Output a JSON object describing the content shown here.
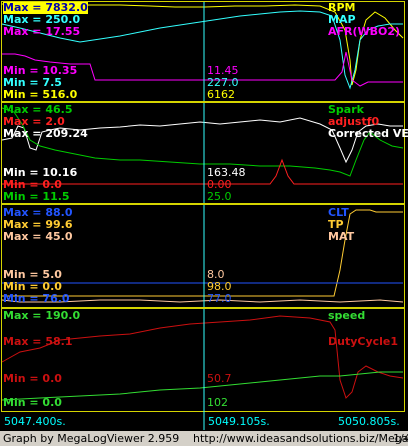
{
  "colors": {
    "yellow": "#ffff00",
    "cyan": "#33ffff",
    "magenta": "#ff00ff",
    "green": "#00cc00",
    "red": "#ff2020",
    "white": "#ffffff",
    "blue": "#2255ff",
    "peach": "#ffc8a0",
    "orange": "#ffcc33",
    "brightgreen": "#33dd33",
    "darkred": "#cc1010"
  },
  "panel1": {
    "max_rpm": "Max = 7832.0",
    "max_map": "Max = 250.0",
    "max_afr": "Max = 17.55",
    "min_afr": "Min = 10.35",
    "min_map": "Min = 7.5",
    "min_rpm": "Min = 516.0",
    "cur_afr": "11.45",
    "cur_map": "227.0",
    "cur_rpm": "6162",
    "name_rpm": "RPM",
    "name_map": "MAP",
    "name_afr": "AFR(WBO2)"
  },
  "panel2": {
    "max_spark": "Max = 46.5",
    "max_adjust": "Max = 2.0",
    "max_ve": "Max = 209.24",
    "min_ve": "Min = 10.16",
    "min_adjust": "Min = 0.0",
    "min_spark": "Min = 11.5",
    "cur_ve": "163.48",
    "cur_adjust": "0.00",
    "cur_spark": "25.0",
    "name_spark": "Spark",
    "name_adjust": "adjustf0",
    "name_ve": "Corrected VE"
  },
  "panel3": {
    "max_clt": "Max = 88.0",
    "max_tp": "Max = 99.6",
    "max_mat": "Max = 45.0",
    "min_mat": "Min = 5.0",
    "min_tp": "Min = 0.0",
    "min_clt": "Min = 76.0",
    "cur_mat": "8.0",
    "cur_tp": "98.0",
    "cur_clt": "77.0",
    "name_clt": "CLT",
    "name_tp": "TP",
    "name_mat": "MAT"
  },
  "panel4": {
    "max_speed": "Max = 190.0",
    "max_duty": "Max = 58.1",
    "min_duty": "Min = 0.0",
    "min_speed": "Min = 0.0",
    "cur_duty": "50.7",
    "cur_speed": "102",
    "name_speed": "speed",
    "name_duty": "DutyCycle1"
  },
  "time_axis": {
    "start": "5047.400s.",
    "cursor": "5049.105s.",
    "end": "5050.805s."
  },
  "footer": {
    "graph_by": "Graph by MegaLogViewer 2.959",
    "url": "http://www.ideasandsolutions.biz/MegaLog",
    "zoom_label": "1/40"
  }
}
